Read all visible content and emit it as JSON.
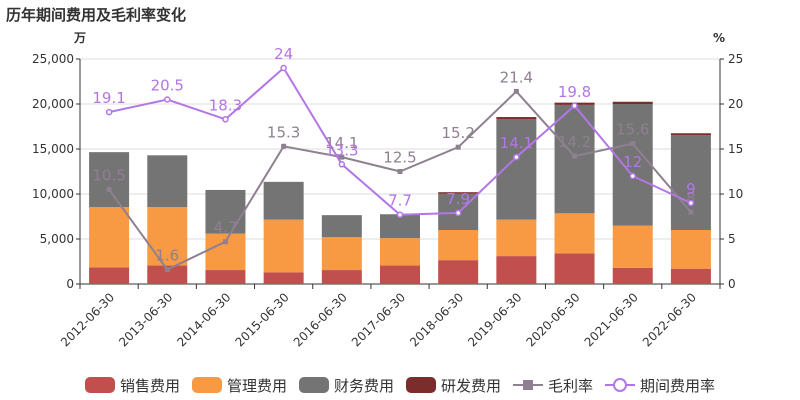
{
  "title": "历年期间费用及毛利率变化",
  "chart_data": {
    "type": "bar",
    "title": "历年期间费用及毛利率变化",
    "categories": [
      "2012-06-30",
      "2013-06-30",
      "2014-06-30",
      "2015-06-30",
      "2016-06-30",
      "2017-06-30",
      "2018-06-30",
      "2019-06-30",
      "2020-06-30",
      "2021-06-30",
      "2022-06-30"
    ],
    "left_axis": {
      "unit": "万",
      "ylim": [
        0,
        25000
      ],
      "ticks": [
        "0",
        "5,000",
        "10,000",
        "15,000",
        "20,000",
        "25,000"
      ]
    },
    "right_axis": {
      "unit": "%",
      "ylim": [
        0,
        25
      ],
      "ticks": [
        "0",
        "5",
        "10",
        "15",
        "20",
        "25"
      ]
    },
    "grid": true,
    "legend_position": "bottom",
    "stacked": true,
    "series": [
      {
        "name": "销售费用",
        "kind": "bar",
        "axis": "left",
        "color": "#c14f4d",
        "values": [
          1850,
          2050,
          1550,
          1300,
          1550,
          2050,
          2650,
          3100,
          3400,
          1800,
          1700
        ]
      },
      {
        "name": "管理费用",
        "kind": "bar",
        "axis": "left",
        "color": "#f79a43",
        "values": [
          6700,
          6500,
          4050,
          5850,
          3650,
          3050,
          3350,
          4050,
          4450,
          4700,
          4300
        ]
      },
      {
        "name": "财务费用",
        "kind": "bar",
        "axis": "left",
        "color": "#747474",
        "values": [
          6100,
          5750,
          4850,
          4200,
          2450,
          2650,
          4050,
          11150,
          12050,
          13500,
          10550
        ]
      },
      {
        "name": "研发费用",
        "kind": "bar",
        "axis": "left",
        "color": "#7b2d2b",
        "values": [
          0,
          0,
          0,
          0,
          0,
          0,
          150,
          250,
          250,
          250,
          200
        ]
      },
      {
        "name": "毛利率",
        "kind": "line",
        "axis": "right",
        "color": "#8e8090",
        "marker": "square",
        "values": [
          10.5,
          1.6,
          4.7,
          15.3,
          14.1,
          12.5,
          15.2,
          21.4,
          14.2,
          15.6,
          8
        ],
        "labels": [
          "10.5",
          "1.6",
          "4.7",
          "15.3",
          "14.1",
          "12.5",
          "15.2",
          "21.4",
          "14.2",
          "15.6",
          "8"
        ]
      },
      {
        "name": "期间费用率",
        "kind": "line",
        "axis": "right",
        "color": "#b376e6",
        "marker": "circle",
        "values": [
          19.1,
          20.5,
          18.3,
          24,
          13.3,
          7.7,
          7.9,
          14.1,
          19.8,
          12,
          9
        ],
        "labels": [
          "19.1",
          "20.5",
          "18.3",
          "24",
          "13.3",
          "7.7",
          "7.9",
          "14.1",
          "19.8",
          "12",
          "9"
        ]
      }
    ]
  }
}
